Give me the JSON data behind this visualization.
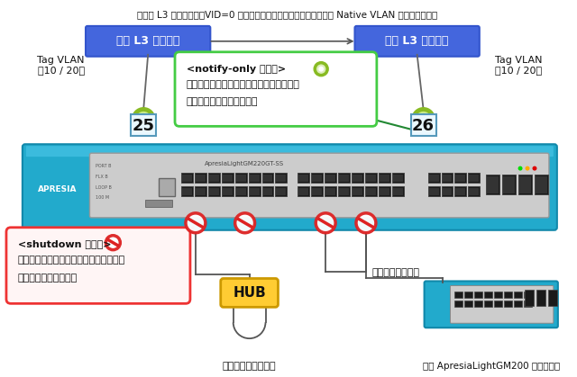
{
  "title_note": "（上位 L3 スイッチで、VID=0 のループ検知フレームを転送するには Native VLAN の設定が必要）",
  "bg_color": "#ffffff",
  "switch_box_color": "#4466dd",
  "switch_text_color": "#ffffff",
  "switch_label": "上位 L3 スイッチ",
  "port25_label": "25",
  "port26_label": "26",
  "tag_vlan_left": "Tag VLAN\n（10 / 20）",
  "tag_vlan_right": "Tag VLAN\n（10 / 20）",
  "notify_box_color": "#ffffff",
  "notify_box_edge": "#44cc44",
  "notify_title": "<notify-only モード>",
  "notify_circle_color": "#99cc33",
  "notify_line1": "ループを検知してもポートを閉塞しない。",
  "notify_line2": "パケット転送は行われる。",
  "shutdown_box_color": "#fff5f5",
  "shutdown_box_edge": "#ee3333",
  "shutdown_title": "<shutdown モード>",
  "shutdown_line1": "ループを検知するとポートを閉塞する。",
  "shutdown_line2": "パケット転送を停止。",
  "hub_label": "HUB",
  "hub_box_color": "#ffcc33",
  "hub_box_edge": "#cc9900",
  "label_port_loop": "ポート間のループ",
  "label_hub_loop": "ポート配下のループ",
  "label_wrong_conn": "他の ApresiaLightGM200 との誤接続",
  "apresia_color": "#22aacc",
  "port_circle_green": "#88bb22",
  "forbidden_red": "#dd2222",
  "line_color": "#555555",
  "line_color_red": "#cc2222",
  "switch_line_color": "#666666",
  "arrow_green": "#228833"
}
